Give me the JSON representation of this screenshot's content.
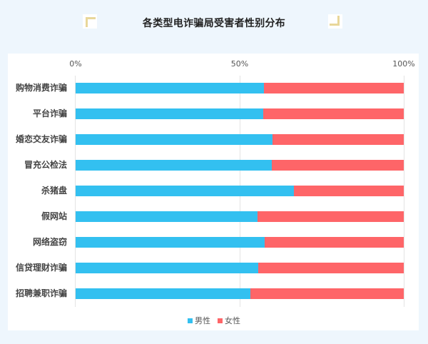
{
  "header": {
    "title": "各类型电诈骗局受害者性别分布"
  },
  "colors": {
    "male": "#33c0f0",
    "female": "#fe6568",
    "background": "#eef6fd",
    "bracket": "#e8d79a"
  },
  "axis": {
    "ticks": [
      "0%",
      "50%",
      "100%"
    ]
  },
  "legend": {
    "items": [
      {
        "label": "男性",
        "color": "#33c0f0"
      },
      {
        "label": "女性",
        "color": "#fe6568"
      }
    ]
  },
  "chart_data": {
    "type": "bar",
    "orientation": "horizontal",
    "stacked": "percent",
    "title": "各类型电诈骗局受害者性别分布",
    "xlabel": "",
    "ylabel": "",
    "xlim": [
      0,
      100
    ],
    "x_ticks": [
      "0%",
      "50%",
      "100%"
    ],
    "grid": true,
    "legend_position": "bottom",
    "categories": [
      "购物消费诈骗",
      "平台诈骗",
      "婚恋交友诈骗",
      "冒充公检法",
      "杀猪盘",
      "假网站",
      "网络盗窃",
      "信贷理财诈骗",
      "招聘兼职诈骗"
    ],
    "series": [
      {
        "name": "男性",
        "color": "#33c0f0",
        "values": [
          57.4,
          57.2,
          60.0,
          59.8,
          66.5,
          55.4,
          57.6,
          55.7,
          53.3
        ]
      },
      {
        "name": "女性",
        "color": "#fe6568",
        "values": [
          42.6,
          42.8,
          40.0,
          40.2,
          33.5,
          44.6,
          42.4,
          44.3,
          46.7
        ]
      }
    ]
  }
}
